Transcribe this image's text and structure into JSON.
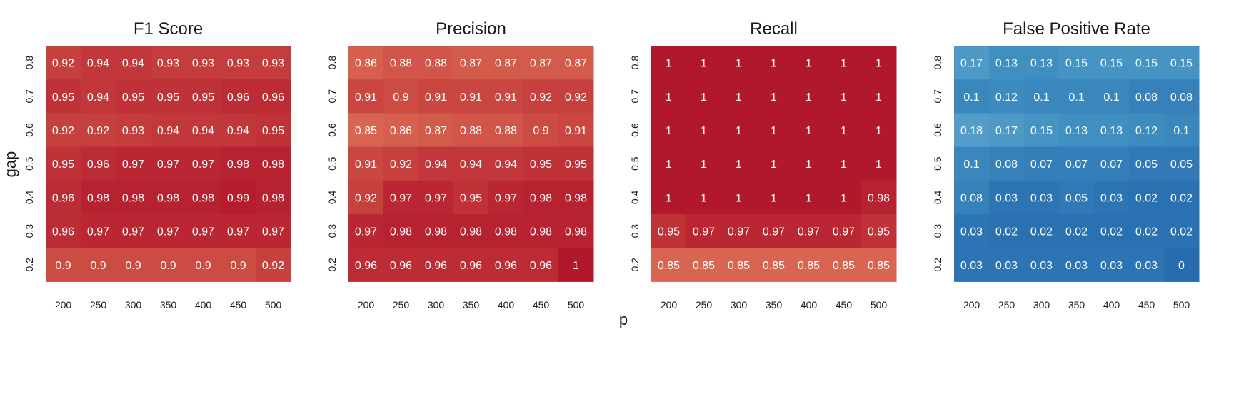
{
  "figure": {
    "shared_xlabel": "p",
    "shared_ylabel": "gap"
  },
  "chart_data": [
    {
      "type": "heatmap",
      "title": "F1 Score",
      "x": [
        "200",
        "250",
        "300",
        "350",
        "400",
        "450",
        "500"
      ],
      "y": [
        "0.8",
        "0.7",
        "0.6",
        "0.5",
        "0.4",
        "0.3",
        "0.2"
      ],
      "values": [
        [
          "0.92",
          "0.94",
          "0.94",
          "0.93",
          "0.93",
          "0.93",
          "0.93"
        ],
        [
          "0.95",
          "0.94",
          "0.95",
          "0.95",
          "0.95",
          "0.96",
          "0.96"
        ],
        [
          "0.92",
          "0.92",
          "0.93",
          "0.94",
          "0.94",
          "0.94",
          "0.95"
        ],
        [
          "0.95",
          "0.96",
          "0.97",
          "0.97",
          "0.97",
          "0.98",
          "0.98"
        ],
        [
          "0.96",
          "0.98",
          "0.98",
          "0.98",
          "0.98",
          "0.99",
          "0.98"
        ],
        [
          "0.96",
          "0.97",
          "0.97",
          "0.97",
          "0.97",
          "0.97",
          "0.97"
        ],
        [
          "0.9",
          "0.9",
          "0.9",
          "0.9",
          "0.9",
          "0.9",
          "0.92"
        ]
      ],
      "colormap": "red-to-blue diverging",
      "grid": false
    },
    {
      "type": "heatmap",
      "title": "Precision",
      "x": [
        "200",
        "250",
        "300",
        "350",
        "400",
        "450",
        "500"
      ],
      "y": [
        "0.8",
        "0.7",
        "0.6",
        "0.5",
        "0.4",
        "0.3",
        "0.2"
      ],
      "values": [
        [
          "0.86",
          "0.88",
          "0.88",
          "0.87",
          "0.87",
          "0.87",
          "0.87"
        ],
        [
          "0.91",
          "0.9",
          "0.91",
          "0.91",
          "0.91",
          "0.92",
          "0.92"
        ],
        [
          "0.85",
          "0.86",
          "0.87",
          "0.88",
          "0.88",
          "0.9",
          "0.91"
        ],
        [
          "0.91",
          "0.92",
          "0.94",
          "0.94",
          "0.94",
          "0.95",
          "0.95"
        ],
        [
          "0.92",
          "0.97",
          "0.97",
          "0.95",
          "0.97",
          "0.98",
          "0.98"
        ],
        [
          "0.97",
          "0.98",
          "0.98",
          "0.98",
          "0.98",
          "0.98",
          "0.98"
        ],
        [
          "0.96",
          "0.96",
          "0.96",
          "0.96",
          "0.96",
          "0.96",
          "1"
        ]
      ],
      "colormap": "red-to-blue diverging",
      "grid": false
    },
    {
      "type": "heatmap",
      "title": "Recall",
      "x": [
        "200",
        "250",
        "300",
        "350",
        "400",
        "450",
        "500"
      ],
      "y": [
        "0.8",
        "0.7",
        "0.6",
        "0.5",
        "0.4",
        "0.3",
        "0.2"
      ],
      "values": [
        [
          "1",
          "1",
          "1",
          "1",
          "1",
          "1",
          "1"
        ],
        [
          "1",
          "1",
          "1",
          "1",
          "1",
          "1",
          "1"
        ],
        [
          "1",
          "1",
          "1",
          "1",
          "1",
          "1",
          "1"
        ],
        [
          "1",
          "1",
          "1",
          "1",
          "1",
          "1",
          "1"
        ],
        [
          "1",
          "1",
          "1",
          "1",
          "1",
          "1",
          "0.98"
        ],
        [
          "0.95",
          "0.97",
          "0.97",
          "0.97",
          "0.97",
          "0.97",
          "0.95"
        ],
        [
          "0.85",
          "0.85",
          "0.85",
          "0.85",
          "0.85",
          "0.85",
          "0.85"
        ]
      ],
      "colormap": "red-to-blue diverging",
      "grid": false
    },
    {
      "type": "heatmap",
      "title": "False Positive Rate",
      "x": [
        "200",
        "250",
        "300",
        "350",
        "400",
        "450",
        "500"
      ],
      "y": [
        "0.8",
        "0.7",
        "0.6",
        "0.5",
        "0.4",
        "0.3",
        "0.2"
      ],
      "values": [
        [
          "0.17",
          "0.13",
          "0.13",
          "0.15",
          "0.15",
          "0.15",
          "0.15"
        ],
        [
          "0.1",
          "0.12",
          "0.1",
          "0.1",
          "0.1",
          "0.08",
          "0.08"
        ],
        [
          "0.18",
          "0.17",
          "0.15",
          "0.13",
          "0.13",
          "0.12",
          "0.1"
        ],
        [
          "0.1",
          "0.08",
          "0.07",
          "0.07",
          "0.07",
          "0.05",
          "0.05"
        ],
        [
          "0.08",
          "0.03",
          "0.03",
          "0.05",
          "0.03",
          "0.02",
          "0.02"
        ],
        [
          "0.03",
          "0.02",
          "0.02",
          "0.02",
          "0.02",
          "0.02",
          "0.02"
        ],
        [
          "0.03",
          "0.03",
          "0.03",
          "0.03",
          "0.03",
          "0.03",
          "0"
        ]
      ],
      "colormap": "red-to-blue diverging",
      "grid": false
    }
  ],
  "colors": {
    "text_dark": "#1a1a1a",
    "cell_text": "#ffffff",
    "red_strong": "#b2182b",
    "red_light": "#e06a58",
    "blue_strong": "#2166ac",
    "blue_light": "#5aa3d1"
  }
}
